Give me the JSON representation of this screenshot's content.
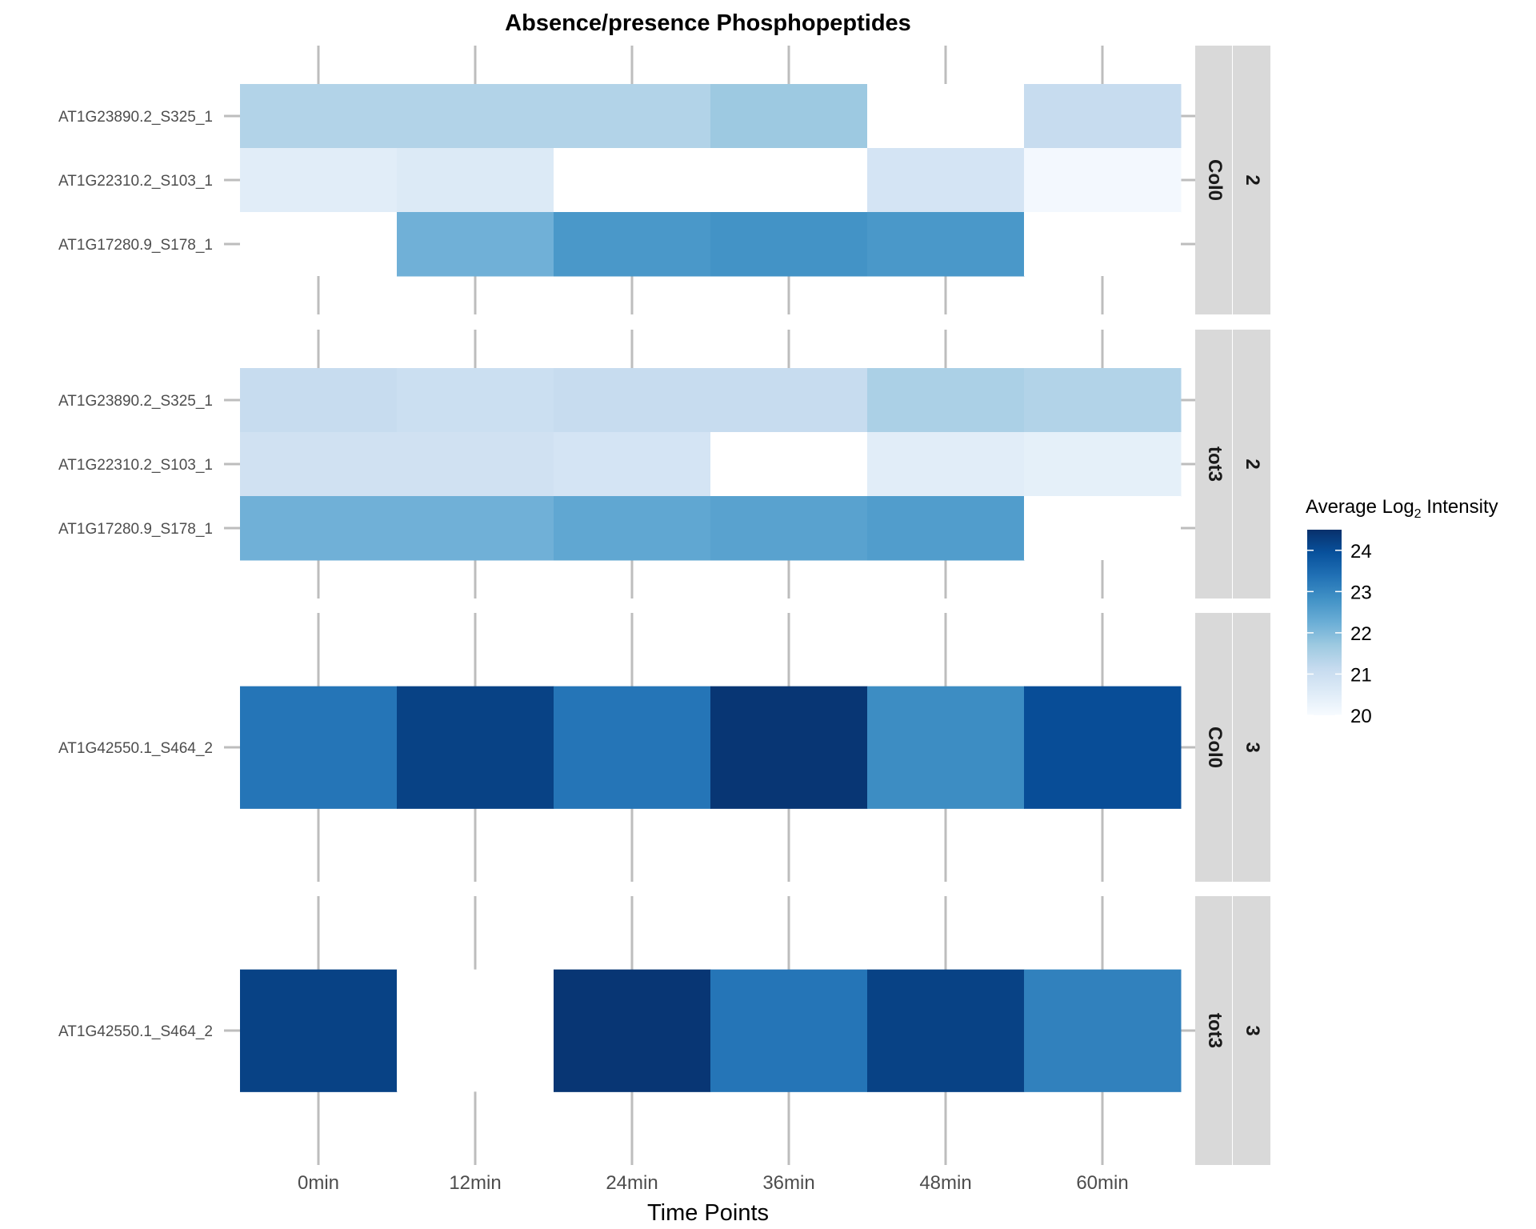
{
  "chart_data": {
    "type": "heatmap",
    "title": "Absence/presence Phosphopeptides",
    "xlabel": "Time Points",
    "ylabel": "",
    "x_categories": [
      "0min",
      "12min",
      "24min",
      "36min",
      "48min",
      "60min"
    ],
    "facets": [
      {
        "strip_genotype": "Col0",
        "strip_cluster": "2",
        "rows": [
          {
            "label": "AT1G23890.2_S325_1",
            "values": [
              21.4,
              21.4,
              21.4,
              21.7,
              null,
              21.1
            ]
          },
          {
            "label": "AT1G22310.2_S103_1",
            "values": [
              20.5,
              20.6,
              null,
              null,
              20.8,
              20.1
            ]
          },
          {
            "label": "AT1G17280.9_S178_1",
            "values": [
              null,
              22.2,
              22.7,
              22.8,
              22.7,
              null
            ]
          }
        ]
      },
      {
        "strip_genotype": "tot3",
        "strip_cluster": "2",
        "rows": [
          {
            "label": "AT1G23890.2_S325_1",
            "values": [
              21.1,
              21.0,
              21.1,
              21.1,
              21.5,
              21.4
            ]
          },
          {
            "label": "AT1G22310.2_S103_1",
            "values": [
              20.9,
              20.9,
              20.8,
              null,
              20.5,
              20.4
            ]
          },
          {
            "label": "AT1G17280.9_S178_1",
            "values": [
              22.2,
              22.2,
              22.4,
              22.5,
              22.6,
              null
            ]
          }
        ]
      },
      {
        "strip_genotype": "Col0",
        "strip_cluster": "3",
        "rows": [
          {
            "label": "AT1G42550.1_S464_2",
            "values": [
              23.3,
              24.2,
              23.3,
              24.4,
              22.9,
              24.0
            ]
          }
        ]
      },
      {
        "strip_genotype": "tot3",
        "strip_cluster": "3",
        "rows": [
          {
            "label": "AT1G42550.1_S464_2",
            "values": [
              24.2,
              null,
              24.4,
              23.3,
              24.2,
              23.1
            ]
          }
        ]
      }
    ],
    "legend": {
      "title_prefix": "Average Log",
      "title_subscript": "2",
      "title_suffix": " Intensity",
      "ticks": [
        24,
        23,
        22,
        21,
        20
      ],
      "range": [
        20,
        24.5
      ],
      "colors": [
        "#f7fbff",
        "#deebf7",
        "#c6dbef",
        "#9ecae1",
        "#6baed6",
        "#4292c6",
        "#2171b5",
        "#08519c",
        "#08306b"
      ],
      "placement": "right"
    },
    "grid": true
  }
}
